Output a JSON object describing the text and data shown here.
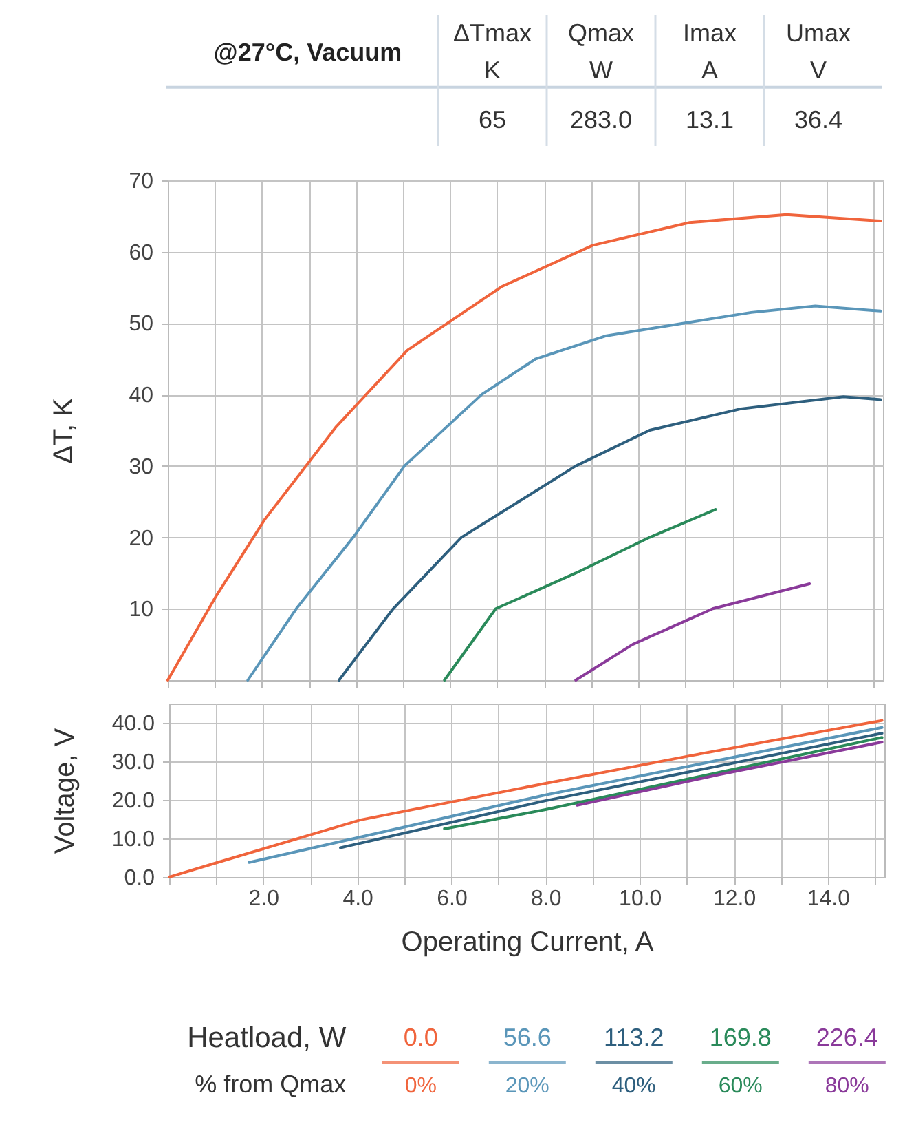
{
  "chart_data": [
    {
      "type": "other",
      "title": "@27°C, Vacuum",
      "categories": [
        "ΔTmax K",
        "Qmax W",
        "Imax A",
        "Umax V"
      ],
      "value_labels": [
        "65",
        "283.0",
        "13.1",
        "36.4"
      ]
    },
    {
      "type": "line",
      "ylabel": "ΔT, K",
      "xlim": [
        0,
        15.2
      ],
      "ylim": [
        0,
        70
      ],
      "grid": true,
      "tick_labels": "y",
      "xticks": [
        {
          "value": 0,
          "label": null
        },
        {
          "value": 1,
          "label": null
        },
        {
          "value": 2,
          "label": null
        },
        {
          "value": 3,
          "label": null
        },
        {
          "value": 4,
          "label": null
        },
        {
          "value": 5,
          "label": null
        },
        {
          "value": 6,
          "label": null
        },
        {
          "value": 7,
          "label": null
        },
        {
          "value": 8,
          "label": null
        },
        {
          "value": 9,
          "label": null
        },
        {
          "value": 10,
          "label": null
        },
        {
          "value": 11,
          "label": null
        },
        {
          "value": 12,
          "label": null
        },
        {
          "value": 13,
          "label": null
        },
        {
          "value": 14,
          "label": null
        },
        {
          "value": 15,
          "label": null
        }
      ],
      "yticks": [
        10,
        20,
        30,
        40,
        50,
        60,
        70
      ],
      "series": [
        {
          "color": "#f0643c",
          "x": [
            0,
            1.03,
            2.06,
            3.58,
            5.09,
            7.09,
            9.03,
            11.09,
            13.15,
            15.15
          ],
          "values": [
            0,
            11.8,
            22.5,
            35.5,
            46.2,
            55.1,
            60.9,
            64.1,
            65.2,
            64.3
          ]
        },
        {
          "color": "#5a96b9",
          "x": [
            1.7,
            2.73,
            3.94,
            5.03,
            6.67,
            7.82,
            9.3,
            10.97,
            12.4,
            13.76,
            15.15
          ],
          "values": [
            0,
            10,
            20,
            30,
            40,
            45,
            48.2,
            50,
            51.5,
            52.4,
            51.7
          ]
        },
        {
          "color": "#2e5f7e",
          "x": [
            3.64,
            4.79,
            6.24,
            8.67,
            10.24,
            12.18,
            14.36,
            15.15
          ],
          "values": [
            0,
            10,
            20,
            30,
            35,
            38,
            39.7,
            39.3
          ]
        },
        {
          "color": "#2a8a5a",
          "x": [
            5.88,
            6.97,
            8.67,
            10.24,
            11.64
          ],
          "values": [
            0,
            10,
            15,
            20,
            23.9
          ]
        },
        {
          "color": "#8a3a9a",
          "x": [
            8.67,
            9.88,
            11.58,
            13.64
          ],
          "values": [
            0,
            5,
            10,
            13.5
          ]
        }
      ]
    },
    {
      "type": "line",
      "xlabel": "Operating Current, A",
      "ylabel": "Voltage, V",
      "xlim": [
        0,
        15.2
      ],
      "ylim": [
        0,
        45
      ],
      "grid": true,
      "legend": "bottom",
      "legend_title": "Heatload, W",
      "xticks": [
        {
          "value": 0,
          "label": null
        },
        {
          "value": 1,
          "label": null
        },
        {
          "value": 2,
          "label": "2.0"
        },
        {
          "value": 3,
          "label": null
        },
        {
          "value": 4,
          "label": "4.0"
        },
        {
          "value": 5,
          "label": null
        },
        {
          "value": 6,
          "label": "6.0"
        },
        {
          "value": 7,
          "label": null
        },
        {
          "value": 8,
          "label": "8.0"
        },
        {
          "value": 9,
          "label": null
        },
        {
          "value": 10,
          "label": "10.0"
        },
        {
          "value": 11,
          "label": null
        },
        {
          "value": 12,
          "label": "12.0"
        },
        {
          "value": 13,
          "label": null
        },
        {
          "value": 14,
          "label": "14.0"
        },
        {
          "value": 15,
          "label": null
        }
      ],
      "yticks": [
        {
          "value": 0,
          "label": "0.0"
        },
        {
          "value": 10,
          "label": "10.0"
        },
        {
          "value": 20,
          "label": "20.0"
        },
        {
          "value": 30,
          "label": "30.0"
        },
        {
          "value": 40,
          "label": "40.0"
        }
      ],
      "annotations": [
        "% from Qmax",
        "0%",
        "20%",
        "40%",
        "60%",
        "80%"
      ],
      "series": [
        {
          "name": "0.0",
          "color": "#f0643c",
          "x": [
            0,
            1.03,
            4.06,
            8,
            11.09,
            15.15
          ],
          "values": [
            0,
            3.8,
            14.8,
            24.3,
            31.5,
            40.6
          ]
        },
        {
          "name": "56.6",
          "color": "#5a96b9",
          "x": [
            1.7,
            8,
            15.15
          ],
          "values": [
            3.8,
            21.3,
            38.8
          ]
        },
        {
          "name": "113.2",
          "color": "#2e5f7e",
          "x": [
            3.64,
            8,
            15.15
          ],
          "values": [
            7.6,
            19.8,
            37.3
          ]
        },
        {
          "name": "169.8",
          "color": "#2a8a5a",
          "x": [
            5.85,
            8,
            15.15
          ],
          "values": [
            12.5,
            17.5,
            36.2
          ]
        },
        {
          "name": "226.4",
          "color": "#8a3a9a",
          "x": [
            8.67,
            11.7,
            15.15
          ],
          "values": [
            18.6,
            26.6,
            35.0
          ]
        }
      ]
    }
  ]
}
